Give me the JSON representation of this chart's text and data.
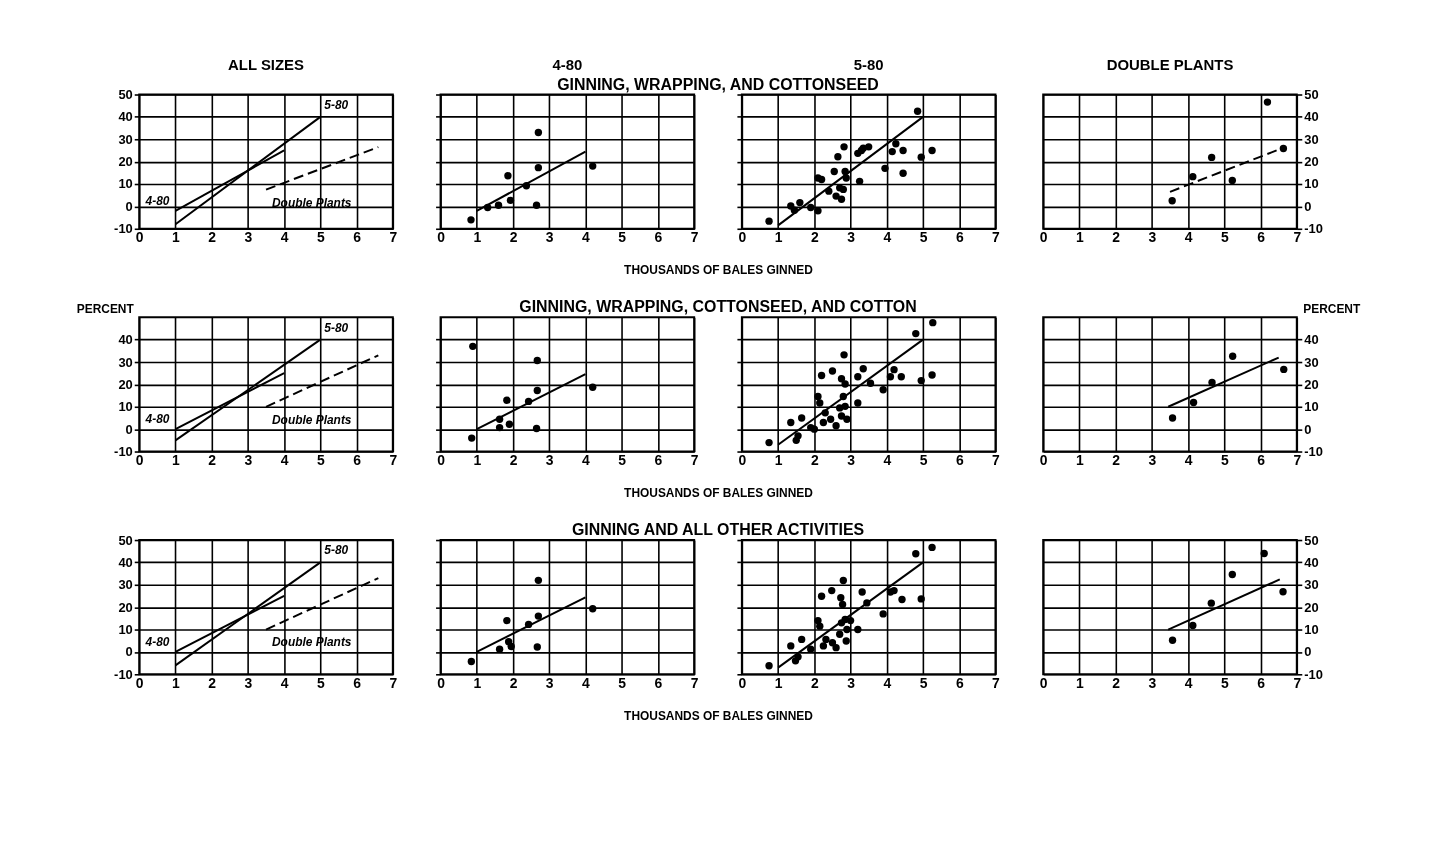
{
  "chart_data": [
    {
      "type": "line",
      "title": "ALL SIZES",
      "grid": true,
      "xlim": [
        0,
        7
      ],
      "xticks": [
        0,
        1,
        2,
        3,
        4,
        5,
        6,
        7
      ],
      "ylim": [
        -10,
        50
      ],
      "yticks": [
        -10,
        0,
        10,
        20,
        30,
        40,
        50
      ],
      "series": [
        {
          "name": "4-80",
          "color": "#000000",
          "line_style": "solid",
          "x": [
            1,
            4
          ],
          "values": [
            -2,
            25
          ]
        },
        {
          "name": "5-80",
          "color": "#000000",
          "line_style": "solid",
          "x": [
            1,
            5
          ],
          "values": [
            -8,
            40
          ]
        },
        {
          "name": "Double Plants",
          "color": "#000000",
          "line_style": "dashed",
          "x": [
            3.5,
            6.6
          ],
          "values": [
            7.5,
            26.5
          ]
        }
      ]
    },
    {
      "type": "scatter",
      "title": "4-80",
      "subtitle": "GINNING, WRAPPING, AND COTTONSEED",
      "xlabel": "THOUSANDS OF BALES GINNED",
      "grid": true,
      "tick_labels": "x",
      "xlim": [
        0,
        7
      ],
      "xticks": [
        0,
        1,
        2,
        3,
        4,
        5,
        6,
        7
      ],
      "ylim": [
        -10,
        50
      ],
      "yticks": [
        -10,
        0,
        10,
        20,
        30,
        40,
        50
      ],
      "series": [
        {
          "type": "scatter",
          "marker": "circle",
          "color": "#000000",
          "x": [
            0.84,
            1.3,
            1.6,
            1.86,
            1.93,
            2.37,
            2.7,
            2.7,
            2.65,
            4.2
          ],
          "values": [
            -6,
            -0.5,
            0.5,
            13.7,
            2.7,
            9.2,
            33,
            17.3,
            0.5,
            18
          ]
        },
        {
          "type": "line",
          "line_style": "solid",
          "color": "#000000",
          "x": [
            1,
            4
          ],
          "values": [
            -2,
            24.5
          ]
        }
      ]
    },
    {
      "type": "scatter",
      "title": "5-80",
      "grid": true,
      "tick_labels": "x",
      "xlim": [
        0,
        7
      ],
      "xticks": [
        0,
        1,
        2,
        3,
        4,
        5,
        6,
        7
      ],
      "ylim": [
        -10,
        50
      ],
      "yticks": [
        -10,
        0,
        10,
        20,
        30,
        40,
        50
      ],
      "series": [
        {
          "type": "scatter",
          "marker": "circle",
          "color": "#000000",
          "x": [
            0.75,
            1.35,
            1.45,
            1.6,
            1.9,
            2.1,
            2.1,
            2.2,
            2.4,
            2.55,
            2.6,
            2.65,
            2.7,
            2.75,
            2.8,
            2.82,
            2.85,
            2.88,
            3.2,
            3.3,
            3.35,
            3.5,
            3.25,
            3.95,
            4.15,
            4.25,
            4.45,
            4.45,
            4.85,
            4.95,
            5.25
          ],
          "values": [
            -6.6,
            0.2,
            -1.7,
            1.7,
            -0.5,
            -2,
            12.7,
            12,
            6.8,
            15.6,
            4.6,
            22.2,
            8.3,
            3.2,
            7.6,
            26.6,
            15.6,
            12.7,
            23.7,
            25,
            26,
            26.6,
            11.2,
            17,
            24.5,
            28,
            25,
            14.8,
            42.5,
            22,
            25
          ]
        },
        {
          "type": "line",
          "line_style": "solid",
          "color": "#000000",
          "x": [
            1,
            5
          ],
          "values": [
            -8.5,
            40
          ]
        }
      ]
    },
    {
      "type": "scatter",
      "title": "DOUBLE PLANTS",
      "grid": true,
      "xlim": [
        0,
        7
      ],
      "xticks": [
        0,
        1,
        2,
        3,
        4,
        5,
        6,
        7
      ],
      "ylim": [
        -10,
        50
      ],
      "yticks": [
        -10,
        0,
        10,
        20,
        30,
        40,
        50
      ],
      "series": [
        {
          "type": "scatter",
          "marker": "circle",
          "color": "#000000",
          "x": [
            3.56,
            4.13,
            4.65,
            5.22,
            6.19,
            6.63
          ],
          "values": [
            2.5,
            13.3,
            21.9,
            11.6,
            46.6,
            25.9
          ]
        },
        {
          "type": "line",
          "line_style": "dashed",
          "color": "#000000",
          "x": [
            3.5,
            6.6
          ],
          "values": [
            6.5,
            26
          ]
        }
      ]
    },
    {
      "type": "line",
      "ylabel": "PERCENT",
      "grid": true,
      "xlim": [
        0,
        7
      ],
      "xticks": [
        0,
        1,
        2,
        3,
        4,
        5,
        6,
        7
      ],
      "ylim": [
        -10,
        50
      ],
      "yticks": [
        -10,
        0,
        10,
        20,
        30,
        40
      ],
      "series": [
        {
          "name": "4-80",
          "color": "#000000",
          "line_style": "solid",
          "x": [
            1,
            4
          ],
          "values": [
            0,
            25
          ]
        },
        {
          "name": "5-80",
          "color": "#000000",
          "line_style": "solid",
          "x": [
            1,
            5
          ],
          "values": [
            -5,
            40
          ]
        },
        {
          "name": "Double Plants",
          "color": "#000000",
          "line_style": "dashed",
          "x": [
            3.5,
            6.6
          ],
          "values": [
            10,
            33
          ]
        }
      ]
    },
    {
      "type": "scatter",
      "subtitle": "GINNING, WRAPPING, COTTONSEED, AND COTTON",
      "xlabel": "THOUSANDS OF BALES GINNED",
      "grid": true,
      "tick_labels": "x",
      "xlim": [
        0,
        7
      ],
      "xticks": [
        0,
        1,
        2,
        3,
        4,
        5,
        6,
        7
      ],
      "ylim": [
        -10,
        50
      ],
      "yticks": [
        -10,
        0,
        10,
        20,
        30,
        40
      ],
      "series": [
        {
          "type": "scatter",
          "marker": "circle",
          "color": "#000000",
          "x": [
            0.86,
            0.89,
            1.63,
            1.63,
            1.83,
            1.9,
            2.43,
            2.67,
            2.67,
            2.65,
            4.2
          ],
          "values": [
            -4,
            37,
            4.4,
            0.7,
            12.9,
            2.2,
            12.4,
            30.7,
            17.3,
            0.3,
            18.7
          ]
        },
        {
          "type": "line",
          "line_style": "solid",
          "color": "#000000",
          "x": [
            1,
            4
          ],
          "values": [
            0,
            24.6
          ]
        }
      ]
    },
    {
      "type": "scatter",
      "grid": true,
      "tick_labels": "x",
      "xlim": [
        0,
        7
      ],
      "xticks": [
        0,
        1,
        2,
        3,
        4,
        5,
        6,
        7
      ],
      "ylim": [
        -10,
        50
      ],
      "yticks": [
        -10,
        0,
        10,
        20,
        30,
        40
      ],
      "series": [
        {
          "type": "scatter",
          "marker": "circle",
          "color": "#000000",
          "x": [
            0.75,
            1.35,
            1.5,
            1.65,
            1.55,
            1.9,
            2,
            2.1,
            2.15,
            2.2,
            2.25,
            2.3,
            2.45,
            2.5,
            2.6,
            2.7,
            2.75,
            2.75,
            2.82,
            2.8,
            2.85,
            2.9,
            2.85,
            3.2,
            3.2,
            3.35,
            3.55,
            3.9,
            4.1,
            4.2,
            4.4,
            4.8,
            4.95,
            5.25,
            5.27
          ],
          "values": [
            -6,
            3,
            -5,
            5,
            -3,
            0.7,
            0,
            14.6,
            11.7,
            24,
            3,
            7.3,
            4.4,
            26,
            1.5,
            9.5,
            22.5,
            5.9,
            33.2,
            14.6,
            10.2,
            4.4,
            20.2,
            11.7,
            23.4,
            27,
            20.5,
            17.6,
            23.4,
            26.6,
            23.4,
            42.7,
            21.7,
            24.2,
            47.6
          ]
        },
        {
          "type": "line",
          "line_style": "solid",
          "color": "#000000",
          "x": [
            1,
            5
          ],
          "values": [
            -7,
            40
          ]
        }
      ]
    },
    {
      "type": "scatter",
      "ylabel": "PERCENT",
      "grid": true,
      "xlim": [
        0,
        7
      ],
      "xticks": [
        0,
        1,
        2,
        3,
        4,
        5,
        6,
        7
      ],
      "ylim": [
        -10,
        50
      ],
      "yticks": [
        -10,
        0,
        10,
        20,
        30,
        40
      ],
      "series": [
        {
          "type": "scatter",
          "marker": "circle",
          "color": "#000000",
          "x": [
            3.57,
            4.15,
            4.66,
            5.23,
            6.64
          ],
          "values": [
            5,
            11.9,
            20.9,
            32.6,
            26.7
          ]
        },
        {
          "type": "line",
          "line_style": "solid",
          "color": "#000000",
          "x": [
            3.45,
            6.5
          ],
          "values": [
            10,
            32
          ]
        }
      ]
    },
    {
      "type": "line",
      "grid": true,
      "xlim": [
        0,
        7
      ],
      "xticks": [
        0,
        1,
        2,
        3,
        4,
        5,
        6,
        7
      ],
      "ylim": [
        -10,
        50
      ],
      "yticks": [
        -10,
        0,
        10,
        20,
        30,
        40,
        50
      ],
      "series": [
        {
          "name": "4-80",
          "color": "#000000",
          "line_style": "solid",
          "x": [
            1,
            4
          ],
          "values": [
            0,
            25
          ]
        },
        {
          "name": "5-80",
          "color": "#000000",
          "line_style": "solid",
          "x": [
            1,
            5
          ],
          "values": [
            -6,
            40
          ]
        },
        {
          "name": "Double Plants",
          "color": "#000000",
          "line_style": "dashed",
          "x": [
            3.5,
            6.6
          ],
          "values": [
            10,
            33
          ]
        }
      ]
    },
    {
      "type": "scatter",
      "subtitle": "GINNING AND ALL OTHER ACTIVITIES",
      "xlabel": "THOUSANDS OF BALES GINNED",
      "grid": true,
      "tick_labels": "x",
      "xlim": [
        0,
        7
      ],
      "xticks": [
        0,
        1,
        2,
        3,
        4,
        5,
        6,
        7
      ],
      "ylim": [
        -10,
        50
      ],
      "yticks": [
        -10,
        0,
        10,
        20,
        30,
        40,
        50
      ],
      "series": [
        {
          "type": "scatter",
          "marker": "circle",
          "color": "#000000",
          "x": [
            0.85,
            1.63,
            1.83,
            1.88,
            1.95,
            2.43,
            2.7,
            2.7,
            2.67,
            4.2
          ],
          "values": [
            -4.3,
            1.2,
            14,
            4.6,
            2.4,
            12.3,
            32,
            16,
            2.2,
            19.3
          ]
        },
        {
          "type": "line",
          "line_style": "solid",
          "color": "#000000",
          "x": [
            1,
            4
          ],
          "values": [
            0,
            24.4
          ]
        }
      ]
    },
    {
      "type": "scatter",
      "grid": true,
      "tick_labels": "x",
      "xlim": [
        0,
        7
      ],
      "xticks": [
        0,
        1,
        2,
        3,
        4,
        5,
        6,
        7
      ],
      "ylim": [
        -10,
        50
      ],
      "yticks": [
        -10,
        0,
        10,
        20,
        30,
        40,
        50
      ],
      "series": [
        {
          "type": "scatter",
          "marker": "circle",
          "color": "#000000",
          "x": [
            0.75,
            1.35,
            1.48,
            1.65,
            1.55,
            1.9,
            2.1,
            2.15,
            2.2,
            2.25,
            2.32,
            2.48,
            2.5,
            2.6,
            2.7,
            2.73,
            2.78,
            2.8,
            2.75,
            2.85,
            2.88,
            2.9,
            3,
            3.2,
            3.32,
            3.45,
            3.9,
            4.1,
            4.2,
            4.42,
            4.8,
            4.95,
            5.25
          ],
          "values": [
            -6.2,
            2.7,
            -4,
            5.6,
            -2.2,
            1.2,
            14,
            11.5,
            24.9,
            2.7,
            5.6,
            27.4,
            4.1,
            1.9,
            7.9,
            24.2,
            21.2,
            31.9,
            13,
            14.5,
            4.9,
            10,
            14,
            10,
            26.8,
            21.9,
            17,
            26.8,
            27.4,
            23.4,
            43.9,
            23.7,
            46.7
          ]
        },
        {
          "type": "line",
          "line_style": "solid",
          "color": "#000000",
          "x": [
            1,
            5
          ],
          "values": [
            -7,
            40
          ]
        }
      ]
    },
    {
      "type": "scatter",
      "grid": true,
      "xlim": [
        0,
        7
      ],
      "xticks": [
        0,
        1,
        2,
        3,
        4,
        5,
        6,
        7
      ],
      "ylim": [
        -10,
        50
      ],
      "yticks": [
        -10,
        0,
        10,
        20,
        30,
        40,
        50
      ],
      "series": [
        {
          "type": "scatter",
          "marker": "circle",
          "color": "#000000",
          "x": [
            3.57,
            4.13,
            4.64,
            5.22,
            6.1,
            6.62
          ],
          "values": [
            5.2,
            11.8,
            21.8,
            34.6,
            44,
            26.9
          ]
        },
        {
          "type": "line",
          "line_style": "solid",
          "color": "#000000",
          "x": [
            3.45,
            6.53
          ],
          "values": [
            10,
            32.4
          ]
        }
      ]
    }
  ]
}
